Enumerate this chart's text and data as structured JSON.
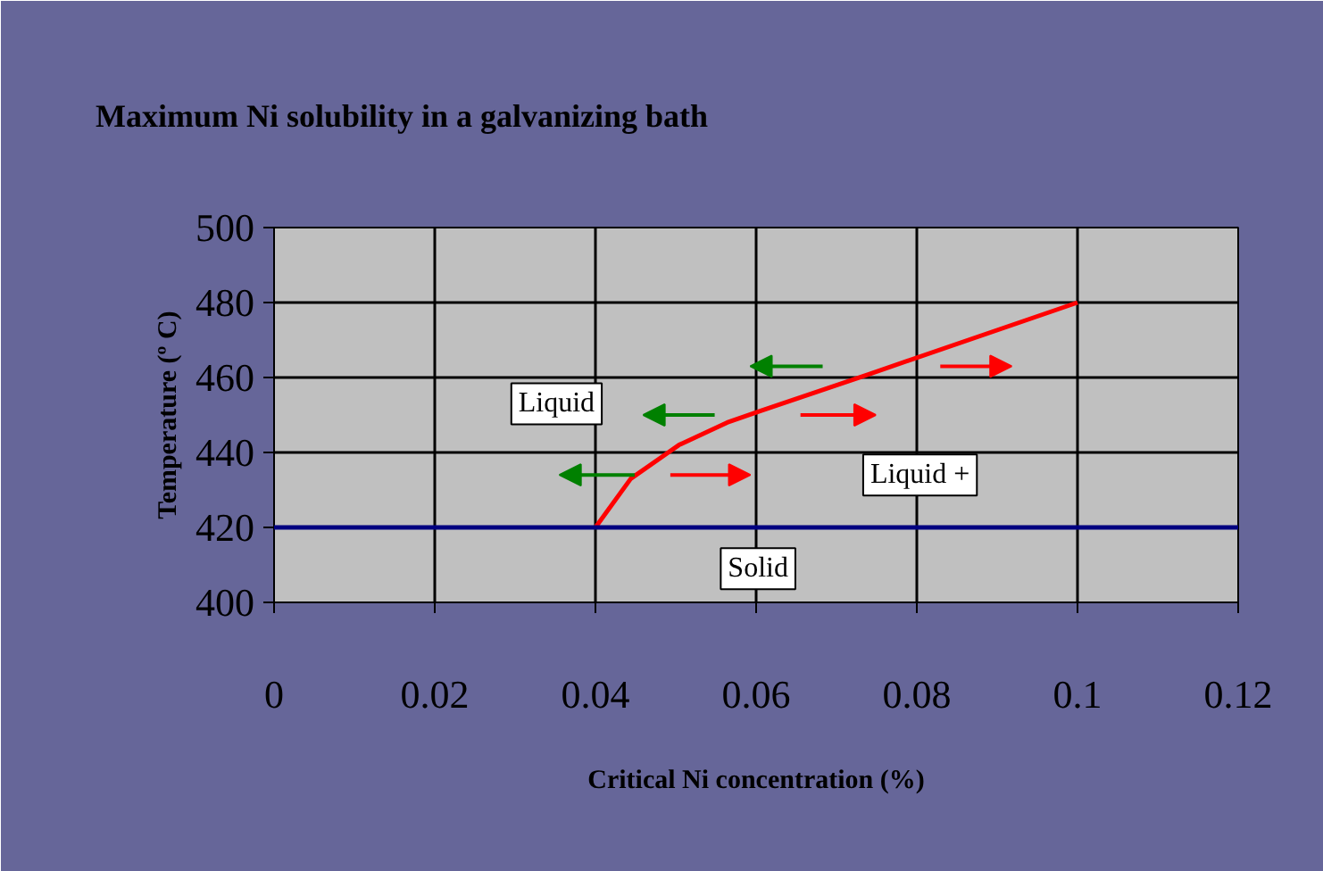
{
  "chart_data": {
    "type": "line",
    "title": "Maximum Ni solubility in a galvanizing bath",
    "xlabel": "Critical Ni concentration (%)",
    "ylabel": "Temperature (º C)",
    "x": [
      0.04,
      0.0444,
      0.0504,
      0.0564,
      0.0604,
      0.0742,
      0.1
    ],
    "series": [
      {
        "color": "#ff0000",
        "values": [
          420,
          433,
          442,
          448,
          451,
          461,
          480
        ]
      }
    ],
    "xlim": [
      0,
      0.12
    ],
    "xticks": [
      0,
      0.02,
      0.04,
      0.06,
      0.08,
      0.1,
      0.12
    ],
    "ylim": [
      400,
      500
    ],
    "yticks": [
      400,
      420,
      440,
      460,
      480,
      500
    ],
    "grid": true,
    "marker": "none",
    "line_style": "solid",
    "ref_lines": [
      {
        "axis": "y",
        "value": 420,
        "color": "#000080"
      }
    ],
    "annotations": [
      "Liquid",
      "Liquid +",
      "Solid"
    ]
  }
}
